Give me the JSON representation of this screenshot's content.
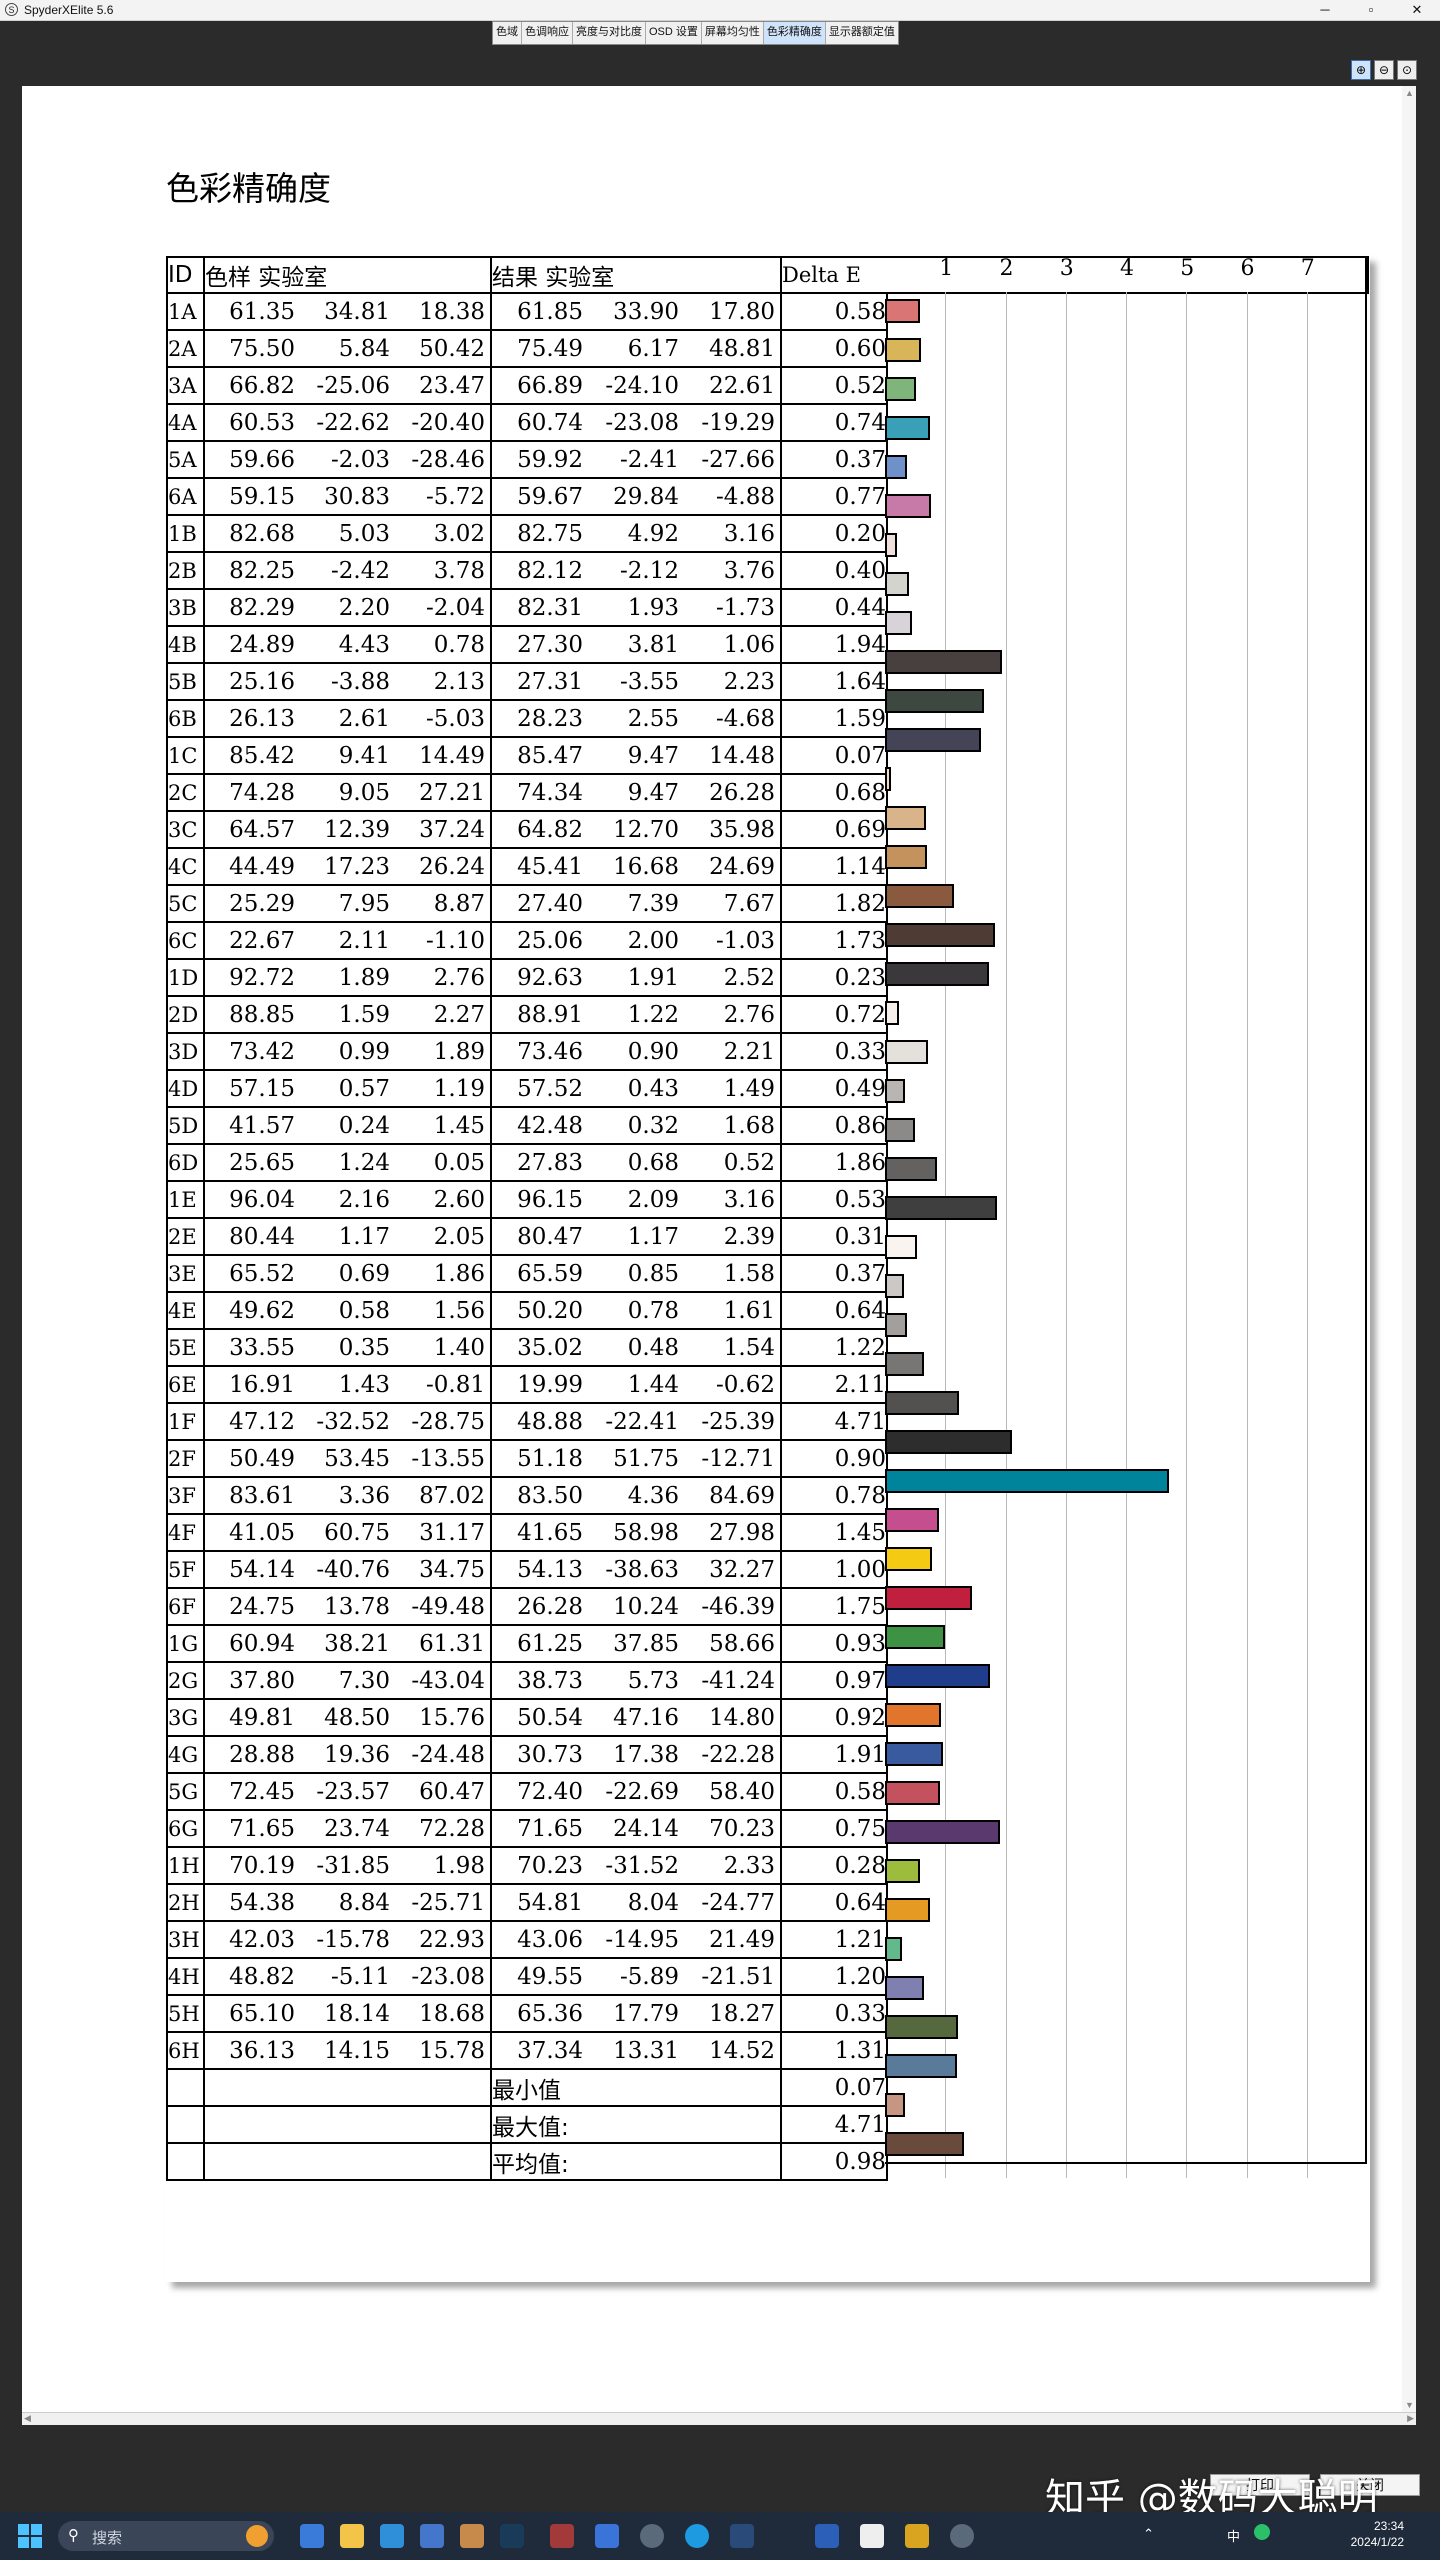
{
  "window": {
    "app_title": "SpyderXElite 5.6",
    "controls": [
      "─",
      "▫",
      "✕"
    ]
  },
  "tabs": [
    "色域",
    "色调响应",
    "亮度与对比度",
    "OSD 设置",
    "屏幕均匀性",
    "色彩精确度",
    "显示器额定值"
  ],
  "active_tab": 5,
  "zoom_buttons": [
    "⊕",
    "⊖",
    "⊙"
  ],
  "report": {
    "title": "色彩精确度",
    "headers": {
      "id": "ID",
      "sample": "色样 实验室",
      "result": "结果 实验室",
      "delta": "Delta E"
    },
    "axis_ticks": [
      "1",
      "2",
      "3",
      "4",
      "5",
      "6",
      "7"
    ],
    "summary": [
      {
        "label": "最小值",
        "value": "0.07"
      },
      {
        "label": "最大值:",
        "value": "4.71"
      },
      {
        "label": "平均值:",
        "value": "0.98"
      }
    ]
  },
  "chart_data": {
    "type": "bar",
    "axis_max": 8,
    "rows": [
      {
        "id": "1A",
        "s": [
          "61.35",
          "34.81",
          "18.38"
        ],
        "r": [
          "61.85",
          "33.90",
          "17.80"
        ],
        "de": "0.58",
        "color": "#d97575"
      },
      {
        "id": "2A",
        "s": [
          "75.50",
          "5.84",
          "50.42"
        ],
        "r": [
          "75.49",
          "6.17",
          "48.81"
        ],
        "de": "0.60",
        "color": "#d9b55a"
      },
      {
        "id": "3A",
        "s": [
          "66.82",
          "-25.06",
          "23.47"
        ],
        "r": [
          "66.89",
          "-24.10",
          "22.61"
        ],
        "de": "0.52",
        "color": "#7fb57a"
      },
      {
        "id": "4A",
        "s": [
          "60.53",
          "-22.62",
          "-20.40"
        ],
        "r": [
          "60.74",
          "-23.08",
          "-19.29"
        ],
        "de": "0.74",
        "color": "#3aa0b8"
      },
      {
        "id": "5A",
        "s": [
          "59.66",
          "-2.03",
          "-28.46"
        ],
        "r": [
          "59.92",
          "-2.41",
          "-27.66"
        ],
        "de": "0.37",
        "color": "#6f90c9"
      },
      {
        "id": "6A",
        "s": [
          "59.15",
          "30.83",
          "-5.72"
        ],
        "r": [
          "59.67",
          "29.84",
          "-4.88"
        ],
        "de": "0.77",
        "color": "#c77aa8"
      },
      {
        "id": "1B",
        "s": [
          "82.68",
          "5.03",
          "3.02"
        ],
        "r": [
          "82.75",
          "4.92",
          "3.16"
        ],
        "de": "0.20",
        "color": "#efdfdb"
      },
      {
        "id": "2B",
        "s": [
          "82.25",
          "-2.42",
          "3.78"
        ],
        "r": [
          "82.12",
          "-2.12",
          "3.76"
        ],
        "de": "0.40",
        "color": "#d3d4cd"
      },
      {
        "id": "3B",
        "s": [
          "82.29",
          "2.20",
          "-2.04"
        ],
        "r": [
          "82.31",
          "1.93",
          "-1.73"
        ],
        "de": "0.44",
        "color": "#d8d3d8"
      },
      {
        "id": "4B",
        "s": [
          "24.89",
          "4.43",
          "0.78"
        ],
        "r": [
          "27.30",
          "3.81",
          "1.06"
        ],
        "de": "1.94",
        "color": "#48403f"
      },
      {
        "id": "5B",
        "s": [
          "25.16",
          "-3.88",
          "2.13"
        ],
        "r": [
          "27.31",
          "-3.55",
          "2.23"
        ],
        "de": "1.64",
        "color": "#3d4840"
      },
      {
        "id": "6B",
        "s": [
          "26.13",
          "2.61",
          "-5.03"
        ],
        "r": [
          "28.23",
          "2.55",
          "-4.68"
        ],
        "de": "1.59",
        "color": "#434455"
      },
      {
        "id": "1C",
        "s": [
          "85.42",
          "9.41",
          "14.49"
        ],
        "r": [
          "85.47",
          "9.47",
          "14.48"
        ],
        "de": "0.07",
        "color": "#f3ddc9"
      },
      {
        "id": "2C",
        "s": [
          "74.28",
          "9.05",
          "27.21"
        ],
        "r": [
          "74.34",
          "9.47",
          "26.28"
        ],
        "de": "0.68",
        "color": "#d9b38a"
      },
      {
        "id": "3C",
        "s": [
          "64.57",
          "12.39",
          "37.24"
        ],
        "r": [
          "64.82",
          "12.70",
          "35.98"
        ],
        "de": "0.69",
        "color": "#c4925c"
      },
      {
        "id": "4C",
        "s": [
          "44.49",
          "17.23",
          "26.24"
        ],
        "r": [
          "45.41",
          "16.68",
          "24.69"
        ],
        "de": "1.14",
        "color": "#8a5a3e"
      },
      {
        "id": "5C",
        "s": [
          "25.29",
          "7.95",
          "8.87"
        ],
        "r": [
          "27.40",
          "7.39",
          "7.67"
        ],
        "de": "1.82",
        "color": "#4d3b34"
      },
      {
        "id": "6C",
        "s": [
          "22.67",
          "2.11",
          "-1.10"
        ],
        "r": [
          "25.06",
          "2.00",
          "-1.03"
        ],
        "de": "1.73",
        "color": "#3a383b"
      },
      {
        "id": "1D",
        "s": [
          "92.72",
          "1.89",
          "2.76"
        ],
        "r": [
          "92.63",
          "1.91",
          "2.52"
        ],
        "de": "0.23",
        "color": "#f5eeea"
      },
      {
        "id": "2D",
        "s": [
          "88.85",
          "1.59",
          "2.27"
        ],
        "r": [
          "88.91",
          "1.22",
          "2.76"
        ],
        "de": "0.72",
        "color": "#e4e0dc"
      },
      {
        "id": "3D",
        "s": [
          "73.42",
          "0.99",
          "1.89"
        ],
        "r": [
          "73.46",
          "0.90",
          "2.21"
        ],
        "de": "0.33",
        "color": "#b8b5b2"
      },
      {
        "id": "4D",
        "s": [
          "57.15",
          "0.57",
          "1.19"
        ],
        "r": [
          "57.52",
          "0.43",
          "1.49"
        ],
        "de": "0.49",
        "color": "#8c8a88"
      },
      {
        "id": "5D",
        "s": [
          "41.57",
          "0.24",
          "1.45"
        ],
        "r": [
          "42.48",
          "0.32",
          "1.68"
        ],
        "de": "0.86",
        "color": "#646260"
      },
      {
        "id": "6D",
        "s": [
          "25.65",
          "1.24",
          "0.05"
        ],
        "r": [
          "27.83",
          "0.68",
          "0.52"
        ],
        "de": "1.86",
        "color": "#403f3f"
      },
      {
        "id": "1E",
        "s": [
          "96.04",
          "2.16",
          "2.60"
        ],
        "r": [
          "96.15",
          "2.09",
          "3.16"
        ],
        "de": "0.53",
        "color": "#faf4f1"
      },
      {
        "id": "2E",
        "s": [
          "80.44",
          "1.17",
          "2.05"
        ],
        "r": [
          "80.47",
          "1.17",
          "2.39"
        ],
        "de": "0.31",
        "color": "#cbc8c5"
      },
      {
        "id": "3E",
        "s": [
          "65.52",
          "0.69",
          "1.86"
        ],
        "r": [
          "65.59",
          "0.85",
          "1.58"
        ],
        "de": "0.37",
        "color": "#a29f9c"
      },
      {
        "id": "4E",
        "s": [
          "49.62",
          "0.58",
          "1.56"
        ],
        "r": [
          "50.20",
          "0.78",
          "1.61"
        ],
        "de": "0.64",
        "color": "#787674"
      },
      {
        "id": "5E",
        "s": [
          "33.55",
          "0.35",
          "1.40"
        ],
        "r": [
          "35.02",
          "0.48",
          "1.54"
        ],
        "de": "1.22",
        "color": "#525150"
      },
      {
        "id": "6E",
        "s": [
          "16.91",
          "1.43",
          "-0.81"
        ],
        "r": [
          "19.99",
          "1.44",
          "-0.62"
        ],
        "de": "2.11",
        "color": "#2e2d2e"
      },
      {
        "id": "1F",
        "s": [
          "47.12",
          "-32.52",
          "-28.75"
        ],
        "r": [
          "48.88",
          "-22.41",
          "-25.39"
        ],
        "de": "4.71",
        "color": "#00849c"
      },
      {
        "id": "2F",
        "s": [
          "50.49",
          "53.45",
          "-13.55"
        ],
        "r": [
          "51.18",
          "51.75",
          "-12.71"
        ],
        "de": "0.90",
        "color": "#c44e8e"
      },
      {
        "id": "3F",
        "s": [
          "83.61",
          "3.36",
          "87.02"
        ],
        "r": [
          "83.50",
          "4.36",
          "84.69"
        ],
        "de": "0.78",
        "color": "#f4cb12"
      },
      {
        "id": "4F",
        "s": [
          "41.05",
          "60.75",
          "31.17"
        ],
        "r": [
          "41.65",
          "58.98",
          "27.98"
        ],
        "de": "1.45",
        "color": "#c01f3e"
      },
      {
        "id": "5F",
        "s": [
          "54.14",
          "-40.76",
          "34.75"
        ],
        "r": [
          "54.13",
          "-38.63",
          "32.27"
        ],
        "de": "1.00",
        "color": "#3e9243"
      },
      {
        "id": "6F",
        "s": [
          "24.75",
          "13.78",
          "-49.48"
        ],
        "r": [
          "26.28",
          "10.24",
          "-46.39"
        ],
        "de": "1.75",
        "color": "#1f3d8a"
      },
      {
        "id": "1G",
        "s": [
          "60.94",
          "38.21",
          "61.31"
        ],
        "r": [
          "61.25",
          "37.85",
          "58.66"
        ],
        "de": "0.93",
        "color": "#e2752c"
      },
      {
        "id": "2G",
        "s": [
          "37.80",
          "7.30",
          "-43.04"
        ],
        "r": [
          "38.73",
          "5.73",
          "-41.24"
        ],
        "de": "0.97",
        "color": "#3a5aa0"
      },
      {
        "id": "3G",
        "s": [
          "49.81",
          "48.50",
          "15.76"
        ],
        "r": [
          "50.54",
          "47.16",
          "14.80"
        ],
        "de": "0.92",
        "color": "#c4515e"
      },
      {
        "id": "4G",
        "s": [
          "28.88",
          "19.36",
          "-24.48"
        ],
        "r": [
          "30.73",
          "17.38",
          "-22.28"
        ],
        "de": "1.91",
        "color": "#5a3a6e"
      },
      {
        "id": "5G",
        "s": [
          "72.45",
          "-23.57",
          "60.47"
        ],
        "r": [
          "72.40",
          "-22.69",
          "58.40"
        ],
        "de": "0.58",
        "color": "#9dbb3c"
      },
      {
        "id": "6G",
        "s": [
          "71.65",
          "23.74",
          "72.28"
        ],
        "r": [
          "71.65",
          "24.14",
          "70.23"
        ],
        "de": "0.75",
        "color": "#e59b23"
      },
      {
        "id": "1H",
        "s": [
          "70.19",
          "-31.85",
          "1.98"
        ],
        "r": [
          "70.23",
          "-31.52",
          "2.33"
        ],
        "de": "0.28",
        "color": "#62b98c"
      },
      {
        "id": "2H",
        "s": [
          "54.38",
          "8.84",
          "-25.71"
        ],
        "r": [
          "54.81",
          "8.04",
          "-24.77"
        ],
        "de": "0.64",
        "color": "#7f80b0"
      },
      {
        "id": "3H",
        "s": [
          "42.03",
          "-15.78",
          "22.93"
        ],
        "r": [
          "43.06",
          "-14.95",
          "21.49"
        ],
        "de": "1.21",
        "color": "#56693e"
      },
      {
        "id": "4H",
        "s": [
          "48.82",
          "-5.11",
          "-23.08"
        ],
        "r": [
          "49.55",
          "-5.89",
          "-21.51"
        ],
        "de": "1.20",
        "color": "#5a7a9a"
      },
      {
        "id": "5H",
        "s": [
          "65.10",
          "18.14",
          "18.68"
        ],
        "r": [
          "65.36",
          "17.79",
          "18.27"
        ],
        "de": "0.33",
        "color": "#c59682"
      },
      {
        "id": "6H",
        "s": [
          "36.13",
          "14.15",
          "15.78"
        ],
        "r": [
          "37.34",
          "13.31",
          "14.52"
        ],
        "de": "1.31",
        "color": "#6b4a3e"
      }
    ]
  },
  "buttons": {
    "print": "打印",
    "close": "关闭"
  },
  "watermark": "知乎 @数码大聪明",
  "taskbar": {
    "search_placeholder": "搜索",
    "tray_lang": "中",
    "time": "23:34",
    "date": "2024/1/22",
    "icons": [
      "file-explorer",
      "store",
      "photos",
      "word",
      "edge",
      "steam",
      "settings",
      "spyder"
    ]
  }
}
